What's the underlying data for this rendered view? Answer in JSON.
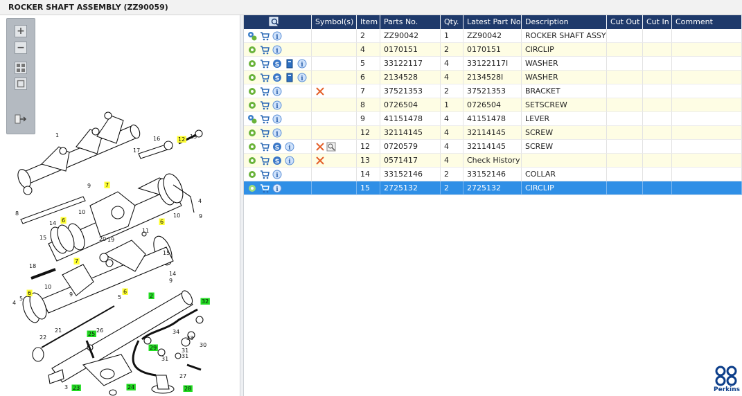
{
  "window": {
    "title": "ROCKER SHAFT ASSEMBLY (ZZ90059)"
  },
  "diagram_toolbar": {
    "zoom_in_icon": "plus-magnifier",
    "zoom_out_icon": "minus-magnifier",
    "fit_icon": "four-squares",
    "actual_size_icon": "single-square",
    "export_icon": "arrow-right-panel"
  },
  "diagram_callouts": [
    {
      "label": "1"
    },
    {
      "label": "3"
    },
    {
      "label": "4"
    },
    {
      "label": "4"
    },
    {
      "label": "5"
    },
    {
      "label": "5"
    },
    {
      "label": "6",
      "hl": "yellow"
    },
    {
      "label": "6",
      "hl": "yellow"
    },
    {
      "label": "6",
      "hl": "yellow"
    },
    {
      "label": "6",
      "hl": "yellow"
    },
    {
      "label": "7",
      "hl": "yellow"
    },
    {
      "label": "7",
      "hl": "yellow"
    },
    {
      "label": "8"
    },
    {
      "label": "9"
    },
    {
      "label": "9"
    },
    {
      "label": "9"
    },
    {
      "label": "9"
    },
    {
      "label": "10"
    },
    {
      "label": "10"
    },
    {
      "label": "10"
    },
    {
      "label": "11"
    },
    {
      "label": "12",
      "hl": "yellow"
    },
    {
      "label": "13"
    },
    {
      "label": "14"
    },
    {
      "label": "14"
    },
    {
      "label": "15"
    },
    {
      "label": "15"
    },
    {
      "label": "16"
    },
    {
      "label": "17"
    },
    {
      "label": "18"
    },
    {
      "label": "19"
    },
    {
      "label": "20"
    },
    {
      "label": "21"
    },
    {
      "label": "22"
    },
    {
      "label": "23",
      "hl": "green"
    },
    {
      "label": "24",
      "hl": "green"
    },
    {
      "label": "25",
      "hl": "green"
    },
    {
      "label": "26"
    },
    {
      "label": "27"
    },
    {
      "label": "28",
      "hl": "green"
    },
    {
      "label": "29",
      "hl": "green"
    },
    {
      "label": "30"
    },
    {
      "label": "31"
    },
    {
      "label": "31"
    },
    {
      "label": "31"
    },
    {
      "label": "32",
      "hl": "green"
    },
    {
      "label": "33"
    },
    {
      "label": "34"
    },
    {
      "label": "2",
      "hl": "green"
    }
  ],
  "grid": {
    "filter_icon": "magnifier-filter",
    "columns": [
      "",
      "Symbol(s)",
      "Item",
      "Parts No.",
      "Qty.",
      "Latest Part No.",
      "Description",
      "Cut Out",
      "Cut In",
      "Comment"
    ],
    "rows": [
      {
        "icons": [
          "gears",
          "cart",
          "info"
        ],
        "symbols": [],
        "item": "2",
        "part": "ZZ90042",
        "qty": "1",
        "latest": "ZZ90042",
        "desc": "ROCKER SHAFT ASSY - M",
        "cutout": "",
        "cutin": "",
        "comment": ""
      },
      {
        "icons": [
          "gear",
          "cart",
          "info"
        ],
        "symbols": [],
        "item": "4",
        "part": "0170151",
        "qty": "2",
        "latest": "0170151",
        "desc": "CIRCLIP",
        "cutout": "",
        "cutin": "",
        "comment": ""
      },
      {
        "icons": [
          "gear",
          "cart",
          "s",
          "book",
          "info"
        ],
        "symbols": [],
        "item": "5",
        "part": "33122117",
        "qty": "4",
        "latest": "33122117I",
        "desc": "WASHER",
        "cutout": "",
        "cutin": "",
        "comment": ""
      },
      {
        "icons": [
          "gear",
          "cart",
          "s",
          "book",
          "info"
        ],
        "symbols": [],
        "item": "6",
        "part": "2134528",
        "qty": "4",
        "latest": "2134528I",
        "desc": "WASHER",
        "cutout": "",
        "cutin": "",
        "comment": ""
      },
      {
        "icons": [
          "gear",
          "cart",
          "info"
        ],
        "symbols": [
          "cross"
        ],
        "item": "7",
        "part": "37521353",
        "qty": "2",
        "latest": "37521353",
        "desc": "BRACKET",
        "cutout": "",
        "cutin": "",
        "comment": ""
      },
      {
        "icons": [
          "gear",
          "cart",
          "info"
        ],
        "symbols": [],
        "item": "8",
        "part": "0726504",
        "qty": "1",
        "latest": "0726504",
        "desc": "SETSCREW",
        "cutout": "",
        "cutin": "",
        "comment": ""
      },
      {
        "icons": [
          "gears",
          "cart",
          "info"
        ],
        "symbols": [],
        "item": "9",
        "part": "41151478",
        "qty": "4",
        "latest": "41151478",
        "desc": "LEVER",
        "cutout": "",
        "cutin": "",
        "comment": ""
      },
      {
        "icons": [
          "gear",
          "cart",
          "info"
        ],
        "symbols": [],
        "item": "12",
        "part": "32114145",
        "qty": "4",
        "latest": "32114145",
        "desc": "SCREW",
        "cutout": "",
        "cutin": "",
        "comment": ""
      },
      {
        "icons": [
          "gear",
          "cart",
          "s",
          "info"
        ],
        "symbols": [
          "cross",
          "magnifier"
        ],
        "item": "12",
        "part": "0720579",
        "qty": "4",
        "latest": "32114145",
        "desc": "SCREW",
        "cutout": "",
        "cutin": "",
        "comment": ""
      },
      {
        "icons": [
          "gear",
          "cart",
          "s",
          "info"
        ],
        "symbols": [
          "cross"
        ],
        "item": "13",
        "part": "0571417",
        "qty": "4",
        "latest": "Check History",
        "desc": "",
        "cutout": "",
        "cutin": "",
        "comment": ""
      },
      {
        "icons": [
          "gear",
          "cart",
          "info"
        ],
        "symbols": [],
        "item": "14",
        "part": "33152146",
        "qty": "2",
        "latest": "33152146",
        "desc": "COLLAR",
        "cutout": "",
        "cutin": "",
        "comment": ""
      },
      {
        "icons": [
          "gear",
          "cart",
          "info"
        ],
        "symbols": [],
        "item": "15",
        "part": "2725132",
        "qty": "2",
        "latest": "2725132",
        "desc": "CIRCLIP",
        "cutout": "",
        "cutin": "",
        "comment": "",
        "selected": true
      }
    ]
  },
  "brand": {
    "name": "Perkins"
  },
  "colors": {
    "header_bg": "#1f3a6b",
    "alt_row": "#fefde4",
    "selected_row": "#2f8fe6",
    "highlight_yellow": "#ffff33",
    "highlight_green": "#22dd22"
  }
}
